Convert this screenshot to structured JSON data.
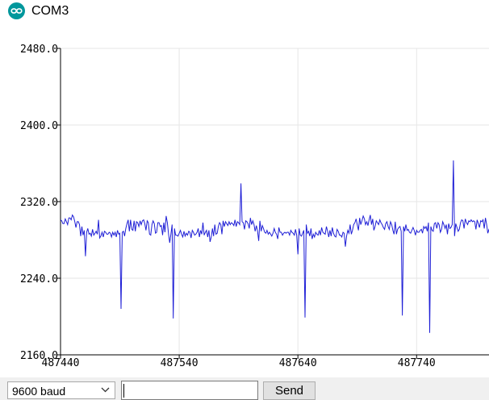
{
  "window": {
    "title": "COM3",
    "icon": "arduino-infinity-icon",
    "icon_color": "#00979c"
  },
  "plot": {
    "line_color": "#1f1fd6",
    "grid_color": "#e6e6e6"
  },
  "chart_data": {
    "type": "line",
    "ylim": [
      2160.0,
      2480.0
    ],
    "y_ticks": [
      "2480.0",
      "2400.0",
      "2320.0",
      "2240.0",
      "2160.0"
    ],
    "xlim": [
      487440,
      487801
    ],
    "x_ticks": [
      "487440",
      "487540",
      "487640",
      "487740"
    ],
    "grid": true,
    "series": [
      {
        "x_start": 487440,
        "values": [
          2301,
          2300,
          2297,
          2297,
          2302,
          2299,
          2296,
          2303,
          2303,
          2301,
          2306,
          2304,
          2299,
          2293,
          2299,
          2299,
          2296,
          2284,
          2294,
          2285,
          2290,
          2263,
          2288,
          2292,
          2286,
          2287,
          2284,
          2291,
          2285,
          2287,
          2289,
          2286,
          2301,
          2282,
          2284,
          2288,
          2283,
          2289,
          2288,
          2286,
          2286,
          2288,
          2287,
          2283,
          2288,
          2285,
          2288,
          2283,
          2290,
          2286,
          2287,
          2208,
          2288,
          2289,
          2284,
          2292,
          2297,
          2301,
          2289,
          2301,
          2291,
          2290,
          2300,
          2289,
          2299,
          2298,
          2294,
          2300,
          2296,
          2300,
          2301,
          2297,
          2290,
          2300,
          2298,
          2286,
          2285,
          2296,
          2300,
          2297,
          2287,
          2288,
          2298,
          2298,
          2294,
          2295,
          2285,
          2298,
          2288,
          2305,
          2298,
          2286,
          2277,
          2286,
          2296,
          2198,
          2292,
          2285,
          2285,
          2284,
          2287,
          2290,
          2286,
          2283,
          2289,
          2284,
          2287,
          2285,
          2289,
          2288,
          2282,
          2290,
          2288,
          2285,
          2286,
          2288,
          2292,
          2283,
          2290,
          2286,
          2298,
          2285,
          2288,
          2290,
          2283,
          2290,
          2278,
          2283,
          2292,
          2284,
          2296,
          2286,
          2287,
          2294,
          2298,
          2296,
          2286,
          2300,
          2294,
          2299,
          2297,
          2295,
          2299,
          2296,
          2298,
          2297,
          2295,
          2301,
          2294,
          2299,
          2298,
          2296,
          2339,
          2299,
          2298,
          2291,
          2300,
          2299,
          2297,
          2292,
          2303,
          2296,
          2300,
          2296,
          2289,
          2295,
          2289,
          2279,
          2300,
          2289,
          2295,
          2292,
          2288,
          2287,
          2290,
          2286,
          2288,
          2286,
          2284,
          2287,
          2292,
          2288,
          2286,
          2281,
          2293,
          2288,
          2288,
          2285,
          2287,
          2288,
          2287,
          2288,
          2288,
          2285,
          2290,
          2288,
          2287,
          2285,
          2291,
          2285,
          2265,
          2292,
          2285,
          2284,
          2287,
          2290,
          2199,
          2296,
          2287,
          2289,
          2284,
          2292,
          2281,
          2286,
          2283,
          2288,
          2286,
          2285,
          2290,
          2285,
          2293,
          2288,
          2287,
          2286,
          2294,
          2289,
          2283,
          2290,
          2284,
          2293,
          2287,
          2284,
          2283,
          2291,
          2289,
          2285,
          2285,
          2283,
          2288,
          2287,
          2273,
          2284,
          2290,
          2287,
          2296,
          2286,
          2290,
          2296,
          2298,
          2302,
          2296,
          2290,
          2303,
          2296,
          2300,
          2305,
          2302,
          2296,
          2299,
          2295,
          2301,
          2306,
          2296,
          2302,
          2290,
          2294,
          2300,
          2298,
          2296,
          2301,
          2298,
          2296,
          2293,
          2291,
          2297,
          2299,
          2294,
          2291,
          2299,
          2296,
          2290,
          2286,
          2299,
          2286,
          2291,
          2293,
          2294,
          2289,
          2201,
          2294,
          2289,
          2296,
          2290,
          2291,
          2288,
          2287,
          2290,
          2293,
          2290,
          2285,
          2290,
          2288,
          2288,
          2290,
          2291,
          2287,
          2294,
          2292,
          2294,
          2289,
          2298,
          2183,
          2294,
          2290,
          2289,
          2297,
          2298,
          2292,
          2298,
          2296,
          2288,
          2291,
          2299,
          2296,
          2292,
          2296,
          2286,
          2297,
          2292,
          2293,
          2296,
          2363,
          2284,
          2297,
          2293,
          2289,
          2291,
          2298,
          2301,
          2300,
          2292,
          2302,
          2298,
          2296,
          2300,
          2299,
          2301,
          2299,
          2300,
          2299,
          2291,
          2301,
          2297,
          2293,
          2300,
          2299,
          2301,
          2292,
          2303,
          2296,
          2287,
          2291,
          2294,
          2287,
          2294,
          2300,
          2294,
          2290,
          2291,
          2289,
          2290,
          2297,
          2298,
          2276
        ]
      }
    ]
  },
  "controls": {
    "baud_value": "9600 baud",
    "send_input_value": "",
    "send_label": "Send"
  }
}
